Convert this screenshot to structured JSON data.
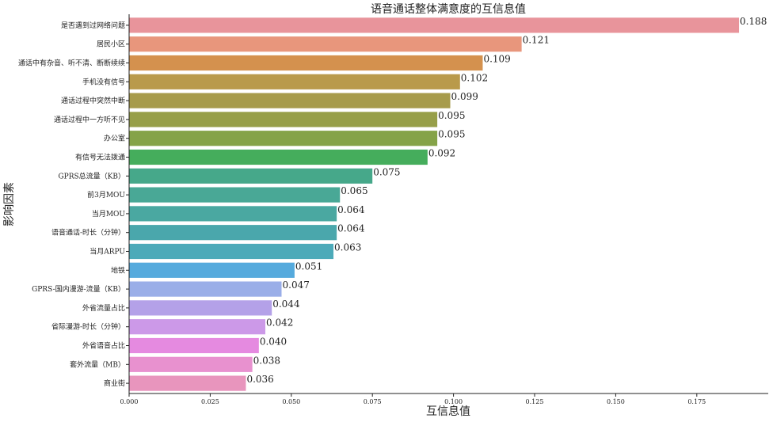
{
  "chart_data": {
    "type": "bar",
    "orientation": "horizontal",
    "title": "语音通话整体满意度的互信息值",
    "xlabel": "互信息值",
    "ylabel": "影响因素",
    "xlim": [
      0,
      0.195
    ],
    "xticks": [
      0.0,
      0.025,
      0.05,
      0.075,
      0.1,
      0.125,
      0.15,
      0.175
    ],
    "xtick_labels": [
      "0.000",
      "0.025",
      "0.050",
      "0.075",
      "0.100",
      "0.125",
      "0.150",
      "0.175"
    ],
    "grid": false,
    "categories": [
      "是否遇到过网络问题",
      "居民小区",
      "通话中有杂音、听不清、断断续续",
      "手机没有信号",
      "通话过程中突然中断",
      "通话过程中一方听不见",
      "办公室",
      "有信号无法拨通",
      "GPRS总流量（KB）",
      "前3月MOU",
      "当月MOU",
      "语音通话-时长（分钟）",
      "当月ARPU",
      "地铁",
      "GPRS-国内漫游-流量（KB）",
      "外省流量占比",
      "省际漫游-时长（分钟）",
      "外省语音占比",
      "套外流量（MB）",
      "商业街"
    ],
    "values": [
      0.188,
      0.121,
      0.109,
      0.102,
      0.099,
      0.095,
      0.095,
      0.092,
      0.075,
      0.065,
      0.064,
      0.064,
      0.063,
      0.051,
      0.047,
      0.044,
      0.042,
      0.04,
      0.038,
      0.036
    ],
    "value_labels": [
      "0.188",
      "0.121",
      "0.109",
      "0.102",
      "0.099",
      "0.095",
      "0.095",
      "0.092",
      "0.075",
      "0.065",
      "0.064",
      "0.064",
      "0.063",
      "0.051",
      "0.047",
      "0.044",
      "0.042",
      "0.040",
      "0.038",
      "0.036"
    ],
    "colors": [
      "#e8949b",
      "#e8967c",
      "#d4914e",
      "#b99a4b",
      "#a79b4b",
      "#979f49",
      "#85a348",
      "#45ad5c",
      "#46a88a",
      "#49a896",
      "#4aa8a1",
      "#4aa7ac",
      "#4caab9",
      "#55aadd",
      "#9aaee8",
      "#b4a1e8",
      "#cc99e8",
      "#e58ae0",
      "#e891cf",
      "#e895bd"
    ]
  }
}
